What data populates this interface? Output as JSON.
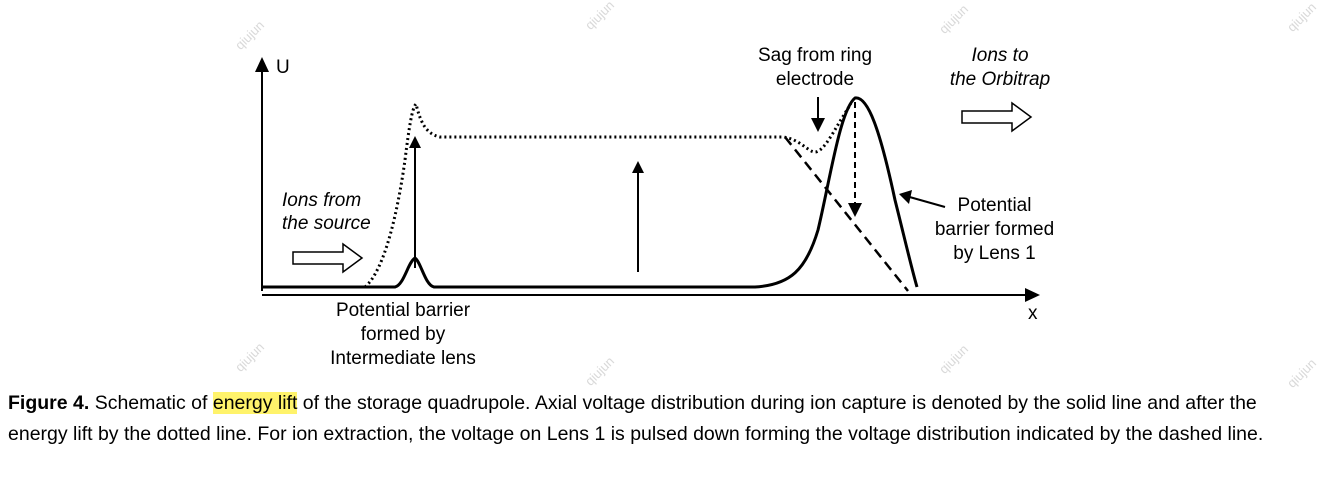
{
  "axes": {
    "y_label": "U",
    "x_label": "x"
  },
  "labels": {
    "ions_in": [
      "Ions from",
      "the source"
    ],
    "ions_out": [
      "Ions to",
      "the Orbitrap"
    ],
    "sag": [
      "Sag from ring",
      "electrode"
    ],
    "barrier_lens1": [
      "Potential",
      "barrier formed",
      "by Lens 1"
    ],
    "barrier_intermediate": [
      "Potential barrier",
      "formed by",
      "Intermediate lens"
    ]
  },
  "watermark": "qiujun",
  "caption": {
    "figure_label": "Figure 4.",
    "before_highlight": " Schematic of ",
    "highlight": "energy lift",
    "after_highlight": " of the storage quadrupole. Axial voltage distribution during ion capture is denoted by the solid line and after the energy lift by the dotted line. For ion extraction, the voltage on Lens 1 is pulsed down forming the voltage distribution indicated by the dashed line.",
    "highlight_color": "#fff36b"
  }
}
